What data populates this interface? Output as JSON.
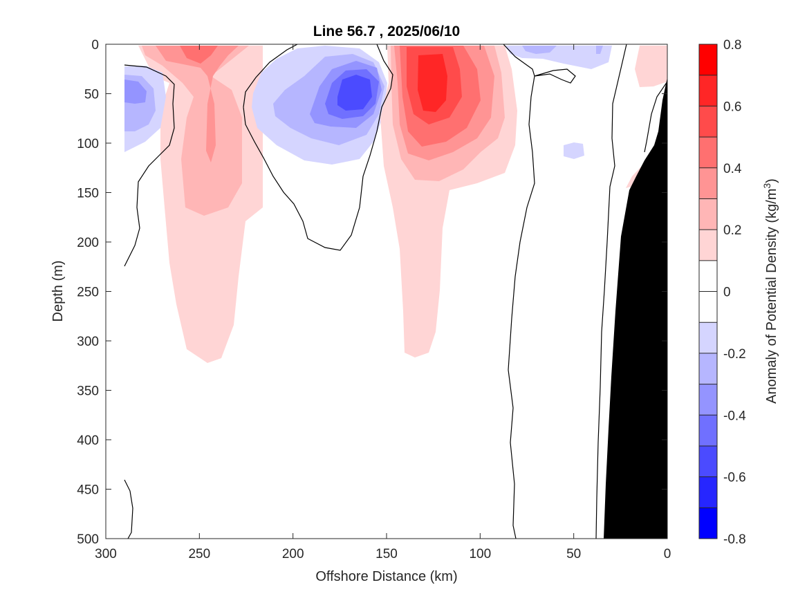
{
  "chart_data": {
    "type": "heatmap",
    "subtype": "filled-contour",
    "title": "Line 56.7 , 2025/06/10",
    "xlabel": "Offshore Distance (km)",
    "ylabel": "Depth (m)",
    "x_ticks": [
      "300",
      "250",
      "200",
      "150",
      "100",
      "50",
      "0"
    ],
    "y_ticks": [
      "0",
      "50",
      "100",
      "150",
      "200",
      "250",
      "300",
      "350",
      "400",
      "450",
      "500"
    ],
    "xlim": [
      300,
      0
    ],
    "ylim": [
      0,
      500
    ],
    "x_reversed": true,
    "y_reversed": true,
    "colorbar": {
      "label": "Anomaly of Potential Density (kg/m",
      "label_superscript": "3",
      "label_suffix": ")",
      "tick_labels": [
        "0.8",
        "0.6",
        "0.4",
        "0.2",
        "0",
        "-0.2",
        "-0.4",
        "-0.6",
        "-0.8"
      ],
      "range": [
        -0.8,
        0.8
      ],
      "levels": [
        -0.8,
        -0.7,
        -0.6,
        -0.5,
        -0.4,
        -0.3,
        -0.2,
        -0.1,
        0.1,
        0.2,
        0.3,
        0.4,
        0.5,
        0.6,
        0.7,
        0.8
      ],
      "colors_neg": [
        "#0000ff",
        "#2626ff",
        "#4b4bff",
        "#7070ff",
        "#9494ff",
        "#b6b6ff",
        "#d5d5ff",
        "#ffffff"
      ],
      "colors_pos": [
        "#ffffff",
        "#ffd5d5",
        "#ffb6b6",
        "#ff9494",
        "#ff7070",
        "#ff4b4b",
        "#ff2626",
        "#ff0000"
      ]
    },
    "features": [
      {
        "kind": "positive",
        "center_km": 245,
        "depth_range_m": [
          0,
          320
        ],
        "peak_anomaly": 0.35
      },
      {
        "kind": "negative",
        "center_km": 290,
        "depth_range_m": [
          30,
          110
        ],
        "peak_anomaly": -0.4
      },
      {
        "kind": "negative",
        "center_km": 168,
        "depth_range_m": [
          0,
          120
        ],
        "peak_anomaly": -0.6
      },
      {
        "kind": "positive",
        "center_km": 125,
        "depth_range_m": [
          0,
          320
        ],
        "peak_anomaly": 0.65
      },
      {
        "kind": "negative",
        "center_km": 70,
        "depth_range_m": [
          0,
          20
        ],
        "peak_anomaly": -0.2
      },
      {
        "kind": "negative",
        "center_km": 48,
        "depth_range_m": [
          95,
          110
        ],
        "peak_anomaly": -0.15
      },
      {
        "kind": "positive",
        "center_km": 10,
        "depth_range_m": [
          0,
          40
        ],
        "peak_anomaly": 0.15
      }
    ],
    "bathymetry_color": "#000000",
    "zero_contour_color": "#000000"
  }
}
